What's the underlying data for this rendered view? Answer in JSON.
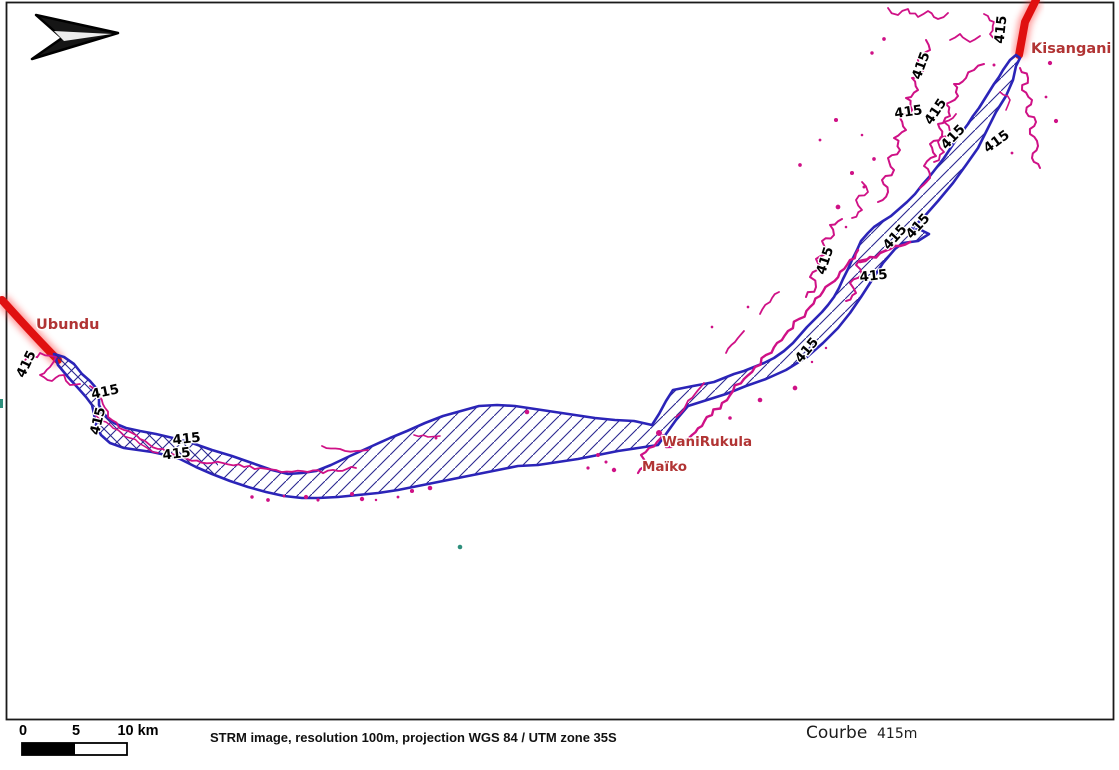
{
  "map": {
    "contour_label": "415",
    "cities": {
      "ubundu": "Ubundu",
      "kisangani": "Kisangani",
      "wanirukula": "WaniRukula",
      "maiko": "Maïko"
    },
    "legend": {
      "courbe_label": "Courbe",
      "courbe_value": "415m"
    },
    "caption": "STRM image, resolution 100m, projection WGS 84 / UTM zone 35S",
    "scalebar": {
      "tick0": "0",
      "tick5": "5",
      "tick10": "10 km"
    },
    "colors": {
      "river_outline": "#2b24b8",
      "river_hatch": "#2a2790",
      "contour": "#cf1186",
      "road": "#e01010",
      "road_glow": "#ff4040",
      "city_label": "#b13434",
      "frame": "#1a1a1a",
      "teal_mark": "#2e8f7c"
    }
  }
}
